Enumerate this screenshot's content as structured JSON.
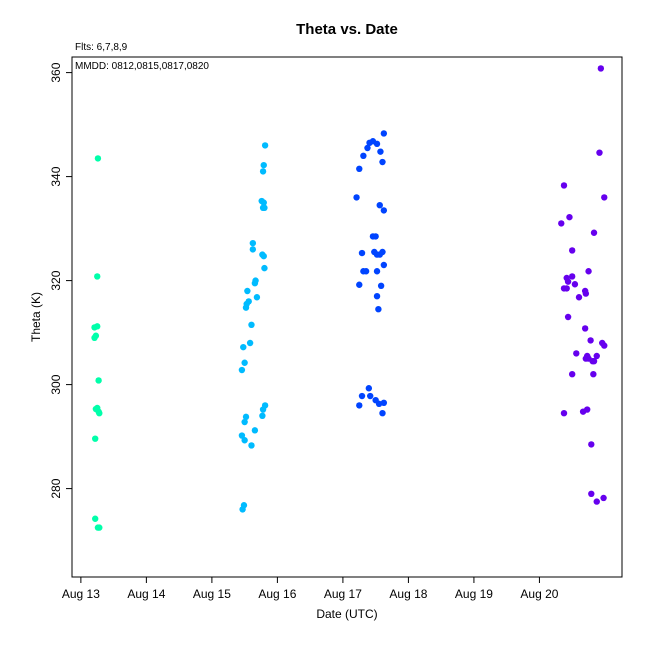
{
  "chart_data": {
    "type": "scatter",
    "title": "Theta  vs. Date",
    "annotations": {
      "flts": "Flts: 6,7,8,9",
      "mmdd": "MMDD: 0812,0815,0817,0820"
    },
    "xlabel": "Date (UTC)",
    "ylabel": "Theta (K)",
    "xlim": [
      "Aug 12 20:45",
      "Aug 21 06:15"
    ],
    "ylim": [
      263,
      363
    ],
    "x_ticks": [
      "Aug 13",
      "Aug 14",
      "Aug 15",
      "Aug 16",
      "Aug 17",
      "Aug 18",
      "Aug 19",
      "Aug 20"
    ],
    "y_ticks": [
      280,
      300,
      320,
      340,
      360
    ],
    "grid": false,
    "legend": "none",
    "series": [
      {
        "color": "#00ffaa",
        "points": [
          [
            "Aug 13 06:15",
            343.5
          ],
          [
            "Aug 13 06:00",
            320.8
          ],
          [
            "Aug 13 05:00",
            311.0
          ],
          [
            "Aug 13 06:00",
            311.2
          ],
          [
            "Aug 13 05:30",
            309.4
          ],
          [
            "Aug 13 05:00",
            309.0
          ],
          [
            "Aug 13 06:30",
            300.8
          ],
          [
            "Aug 13 05:30",
            295.3
          ],
          [
            "Aug 13 06:00",
            295.5
          ],
          [
            "Aug 13 06:30",
            294.8
          ],
          [
            "Aug 13 06:45",
            294.5
          ],
          [
            "Aug 13 05:15",
            289.6
          ],
          [
            "Aug 13 05:15",
            274.2
          ],
          [
            "Aug 13 06:15",
            272.5
          ],
          [
            "Aug 13 06:45",
            272.5
          ]
        ]
      },
      {
        "color": "#00bbff",
        "points": [
          [
            "Aug 15 19:30",
            346.0
          ],
          [
            "Aug 15 19:00",
            342.2
          ],
          [
            "Aug 15 18:45",
            341.0
          ],
          [
            "Aug 15 18:15",
            335.3
          ],
          [
            "Aug 15 19:00",
            335.0
          ],
          [
            "Aug 15 18:45",
            334.0
          ],
          [
            "Aug 15 19:15",
            334.0
          ],
          [
            "Aug 15 15:00",
            327.2
          ],
          [
            "Aug 15 15:00",
            326.0
          ],
          [
            "Aug 15 18:30",
            325.0
          ],
          [
            "Aug 15 19:00",
            324.7
          ],
          [
            "Aug 15 19:15",
            322.4
          ],
          [
            "Aug 15 16:00",
            320.0
          ],
          [
            "Aug 15 15:45",
            319.5
          ],
          [
            "Aug 15 13:00",
            318.0
          ],
          [
            "Aug 15 16:30",
            316.8
          ],
          [
            "Aug 15 13:30",
            316.0
          ],
          [
            "Aug 15 12:45",
            315.5
          ],
          [
            "Aug 15 12:30",
            314.8
          ],
          [
            "Aug 15 14:30",
            311.5
          ],
          [
            "Aug 15 14:00",
            308.0
          ],
          [
            "Aug 15 11:30",
            307.2
          ],
          [
            "Aug 15 12:00",
            304.2
          ],
          [
            "Aug 15 11:00",
            302.8
          ],
          [
            "Aug 15 19:30",
            296.0
          ],
          [
            "Aug 15 18:45",
            295.2
          ],
          [
            "Aug 15 18:30",
            294.0
          ],
          [
            "Aug 15 12:30",
            293.8
          ],
          [
            "Aug 15 12:00",
            292.8
          ],
          [
            "Aug 15 15:45",
            291.2
          ],
          [
            "Aug 15 11:00",
            290.2
          ],
          [
            "Aug 15 12:00",
            289.3
          ],
          [
            "Aug 15 14:30",
            288.3
          ],
          [
            "Aug 15 11:45",
            276.8
          ],
          [
            "Aug 15 11:15",
            276.0
          ]
        ]
      },
      {
        "color": "#0044ff",
        "points": [
          [
            "Aug 17 15:00",
            348.3
          ],
          [
            "Aug 17 09:45",
            346.5
          ],
          [
            "Aug 17 11:00",
            346.8
          ],
          [
            "Aug 17 12:30",
            346.3
          ],
          [
            "Aug 17 09:00",
            345.5
          ],
          [
            "Aug 17 13:45",
            344.8
          ],
          [
            "Aug 17 07:30",
            344.0
          ],
          [
            "Aug 17 14:30",
            342.8
          ],
          [
            "Aug 17 06:00",
            341.5
          ],
          [
            "Aug 17 05:00",
            336.0
          ],
          [
            "Aug 17 13:30",
            334.5
          ],
          [
            "Aug 17 15:00",
            333.5
          ],
          [
            "Aug 17 11:00",
            328.5
          ],
          [
            "Aug 17 12:00",
            328.5
          ],
          [
            "Aug 17 07:00",
            325.3
          ],
          [
            "Aug 17 11:30",
            325.5
          ],
          [
            "Aug 17 12:30",
            325.0
          ],
          [
            "Aug 17 13:30",
            325.0
          ],
          [
            "Aug 17 14:30",
            325.5
          ],
          [
            "Aug 17 15:00",
            323.0
          ],
          [
            "Aug 17 07:30",
            321.8
          ],
          [
            "Aug 17 08:30",
            321.8
          ],
          [
            "Aug 17 12:30",
            321.8
          ],
          [
            "Aug 17 06:00",
            319.2
          ],
          [
            "Aug 17 14:00",
            319.0
          ],
          [
            "Aug 17 12:30",
            317.0
          ],
          [
            "Aug 17 13:00",
            314.5
          ],
          [
            "Aug 17 09:30",
            299.3
          ],
          [
            "Aug 17 07:00",
            297.8
          ],
          [
            "Aug 17 10:00",
            297.8
          ],
          [
            "Aug 17 12:00",
            297.0
          ],
          [
            "Aug 17 13:15",
            296.3
          ],
          [
            "Aug 17 15:00",
            296.5
          ],
          [
            "Aug 17 06:00",
            296.0
          ],
          [
            "Aug 17 14:30",
            294.5
          ]
        ]
      },
      {
        "color": "#6600ee",
        "points": [
          [
            "Aug 20 22:30",
            360.8
          ],
          [
            "Aug 20 22:00",
            344.6
          ],
          [
            "Aug 20 09:00",
            338.3
          ],
          [
            "Aug 20 23:45",
            336.0
          ],
          [
            "Aug 20 11:00",
            332.2
          ],
          [
            "Aug 20 08:00",
            331.0
          ],
          [
            "Aug 20 20:00",
            329.2
          ],
          [
            "Aug 20 12:00",
            325.8
          ],
          [
            "Aug 20 18:00",
            321.8
          ],
          [
            "Aug 20 12:00",
            320.8
          ],
          [
            "Aug 20 10:00",
            320.5
          ],
          [
            "Aug 20 10:30",
            319.8
          ],
          [
            "Aug 20 13:00",
            319.3
          ],
          [
            "Aug 20 10:00",
            318.5
          ],
          [
            "Aug 20 09:00",
            318.5
          ],
          [
            "Aug 20 16:45",
            318.0
          ],
          [
            "Aug 20 17:00",
            317.5
          ],
          [
            "Aug 20 14:30",
            316.8
          ],
          [
            "Aug 20 10:30",
            313.0
          ],
          [
            "Aug 20 16:45",
            310.8
          ],
          [
            "Aug 20 18:45",
            308.5
          ],
          [
            "Aug 20 23:00",
            308.0
          ],
          [
            "Aug 20 23:45",
            307.5
          ],
          [
            "Aug 20 13:30",
            306.0
          ],
          [
            "Aug 20 17:30",
            305.5
          ],
          [
            "Aug 20 21:00",
            305.5
          ],
          [
            "Aug 20 17:00",
            305.0
          ],
          [
            "Aug 20 18:00",
            305.0
          ],
          [
            "Aug 20 19:30",
            304.5
          ],
          [
            "Aug 20 20:00",
            304.5
          ],
          [
            "Aug 20 12:00",
            302.0
          ],
          [
            "Aug 20 19:45",
            302.0
          ],
          [
            "Aug 20 17:30",
            295.2
          ],
          [
            "Aug 20 16:00",
            294.8
          ],
          [
            "Aug 20 09:00",
            294.5
          ],
          [
            "Aug 20 19:00",
            288.5
          ],
          [
            "Aug 20 19:00",
            279.0
          ],
          [
            "Aug 20 21:00",
            277.5
          ],
          [
            "Aug 20 23:30",
            278.2
          ]
        ]
      }
    ]
  }
}
